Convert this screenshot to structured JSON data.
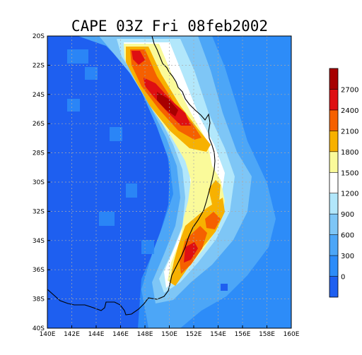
{
  "chart_data": {
    "type": "heatmap",
    "title": "CAPE 03Z Fri 08feb2002",
    "x_ticks": [
      "140E",
      "142E",
      "144E",
      "146E",
      "148E",
      "150E",
      "152E",
      "154E",
      "156E",
      "158E",
      "160E"
    ],
    "y_ticks": [
      "20S",
      "22S",
      "24S",
      "26S",
      "28S",
      "30S",
      "32S",
      "34S",
      "36S",
      "38S",
      "40S"
    ],
    "xlim": [
      140,
      160
    ],
    "ylim": [
      -40,
      -20
    ],
    "grid": true,
    "legend_placement": "right",
    "colorbar": {
      "levels": [
        0,
        300,
        600,
        900,
        1200,
        1500,
        1800,
        2100,
        2400,
        2700
      ],
      "labels": [
        "0",
        "300",
        "600",
        "900",
        "1200",
        "1500",
        "1800",
        "2100",
        "2400",
        "2700"
      ],
      "colors": [
        "#1e5ff0",
        "#2d8cf8",
        "#4ca6f7",
        "#7ec6f6",
        "#b2e7fb",
        "#ffffff",
        "#fafa9a",
        "#f7b100",
        "#f56000",
        "#de0f12",
        "#a70000"
      ]
    },
    "field_features": [
      {
        "feature": "northern CAPE maximum",
        "lon": 150.0,
        "lat": -24.5,
        "peak": 2700
      },
      {
        "feature": "southern CAPE maximum",
        "lon": 151.2,
        "lat": -35.2,
        "peak": 2400
      },
      {
        "feature": "continental interior",
        "lon": 144,
        "lat": -28,
        "value": 150
      }
    ]
  }
}
